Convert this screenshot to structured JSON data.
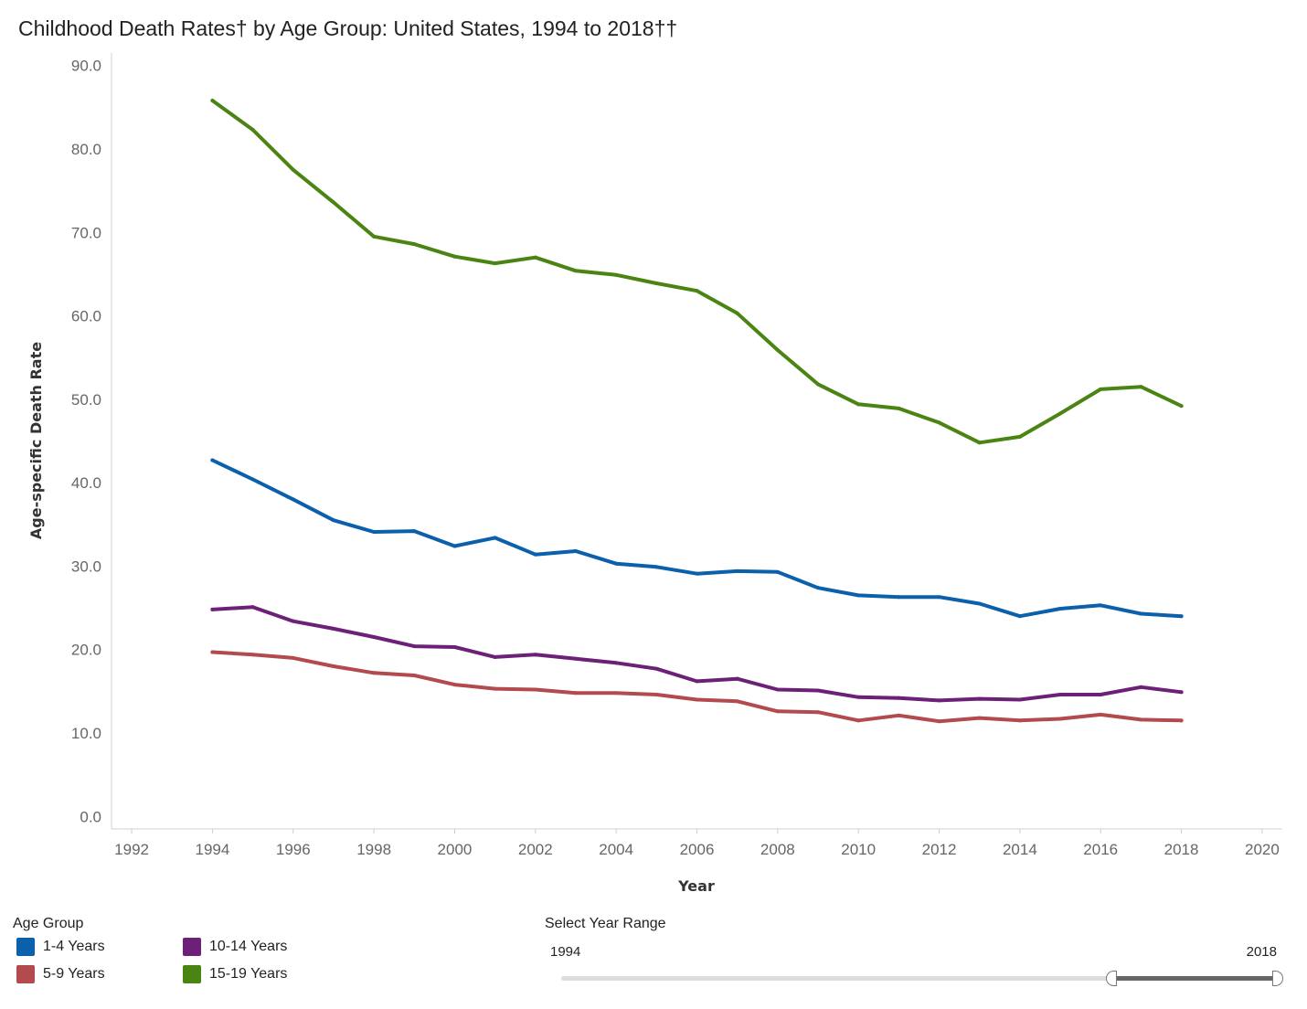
{
  "chart_data": {
    "type": "line",
    "title": "Childhood Death Rates† by Age Group: United States, 1994 to 2018††",
    "xlabel": "Year",
    "ylabel": "Age-specific Death Rate",
    "xlim": [
      1991.5,
      2020.5
    ],
    "ylim": [
      -1.5,
      91.5
    ],
    "x_ticks": [
      1992,
      1994,
      1996,
      1998,
      2000,
      2002,
      2004,
      2006,
      2008,
      2010,
      2012,
      2014,
      2016,
      2018,
      2020
    ],
    "y_ticks": [
      0,
      10,
      20,
      30,
      40,
      50,
      60,
      70,
      80,
      90
    ],
    "y_tick_labels": [
      "0.0",
      "10.0",
      "20.0",
      "30.0",
      "40.0",
      "50.0",
      "60.0",
      "70.0",
      "80.0",
      "90.0"
    ],
    "x": [
      1994,
      1995,
      1996,
      1997,
      1998,
      1999,
      2000,
      2001,
      2002,
      2003,
      2004,
      2005,
      2006,
      2007,
      2008,
      2009,
      2010,
      2011,
      2012,
      2013,
      2014,
      2015,
      2016,
      2017,
      2018
    ],
    "series": [
      {
        "name": "1-4 Years",
        "color": "#0b60ac",
        "values": [
          42.7,
          40.4,
          38.0,
          35.5,
          34.1,
          34.2,
          32.4,
          33.4,
          31.4,
          31.8,
          30.3,
          29.9,
          29.1,
          29.4,
          29.3,
          27.4,
          26.5,
          26.3,
          26.3,
          25.5,
          24.0,
          24.9,
          25.3,
          24.3,
          24.0
        ]
      },
      {
        "name": "5-9 Years",
        "color": "#b24a4e",
        "values": [
          19.7,
          19.4,
          19.0,
          18.0,
          17.2,
          16.9,
          15.8,
          15.3,
          15.2,
          14.8,
          14.8,
          14.6,
          14.0,
          13.8,
          12.6,
          12.5,
          11.5,
          12.1,
          11.4,
          11.8,
          11.5,
          11.7,
          12.2,
          11.6,
          11.5
        ]
      },
      {
        "name": "10-14 Years",
        "color": "#6d2077",
        "values": [
          24.8,
          25.1,
          23.4,
          22.5,
          21.5,
          20.4,
          20.3,
          19.1,
          19.4,
          18.9,
          18.4,
          17.7,
          16.2,
          16.5,
          15.2,
          15.1,
          14.3,
          14.2,
          13.9,
          14.1,
          14.0,
          14.6,
          14.6,
          15.5,
          14.9
        ]
      },
      {
        "name": "15-19 Years",
        "color": "#4a8413",
        "values": [
          85.8,
          82.3,
          77.5,
          73.6,
          69.5,
          68.6,
          67.1,
          66.3,
          67.0,
          65.4,
          64.9,
          63.9,
          63.0,
          60.3,
          55.9,
          51.8,
          49.4,
          48.9,
          47.2,
          44.8,
          45.5,
          48.3,
          51.2,
          51.5,
          49.2
        ]
      }
    ],
    "legend_position": "bottom-left"
  },
  "legend": {
    "title": "Age Group",
    "items": [
      {
        "label": "1-4 Years",
        "color": "#0b60ac"
      },
      {
        "label": "10-14 Years",
        "color": "#6d2077"
      },
      {
        "label": "5-9 Years",
        "color": "#b24a4e"
      },
      {
        "label": "15-19 Years",
        "color": "#4a8413"
      }
    ]
  },
  "range_filter": {
    "title": "Select Year Range",
    "min_label": "1994",
    "max_label": "2018",
    "selected_start_fraction": 0.78,
    "selected_end_fraction": 1.0
  }
}
